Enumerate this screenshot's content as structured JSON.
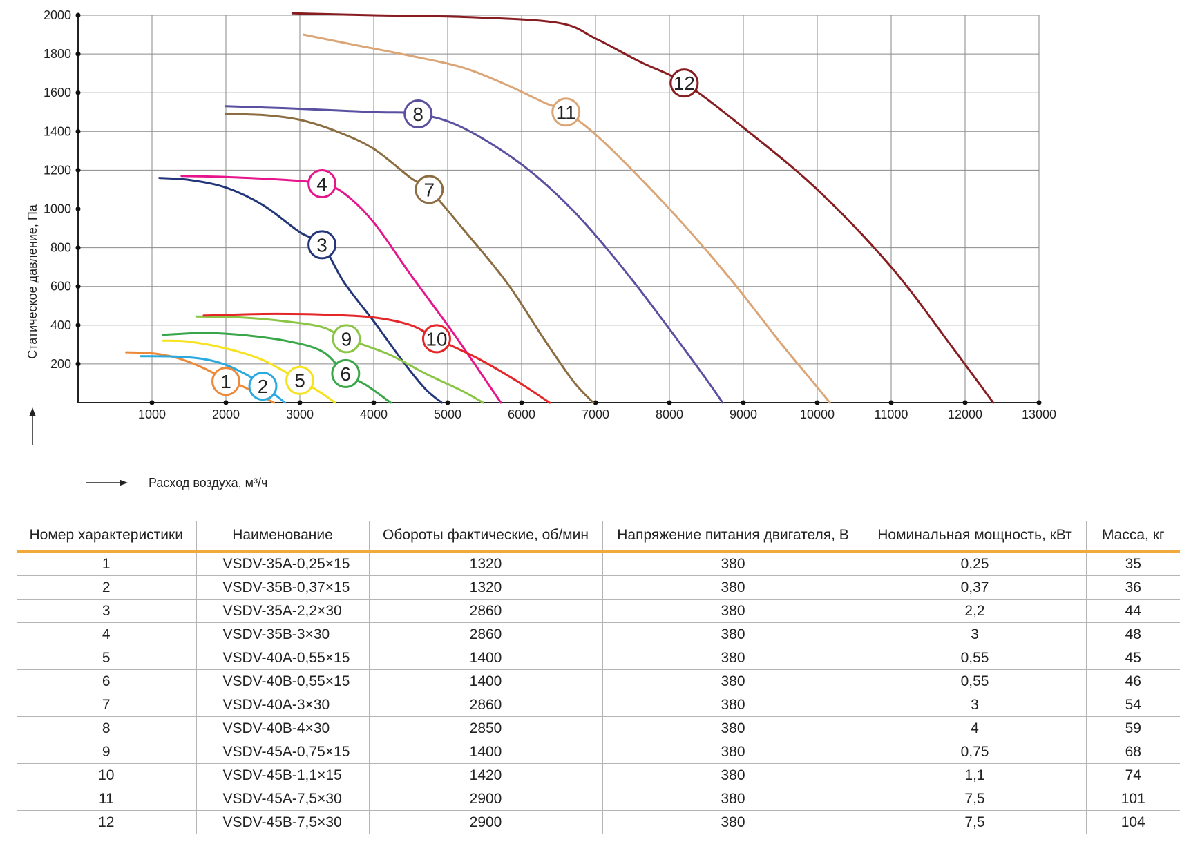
{
  "chart_data": {
    "type": "line",
    "xlabel": "Расход воздуха, м³/ч",
    "ylabel": "Статическое давление, Па",
    "xlim": [
      0,
      13000
    ],
    "ylim": [
      0,
      2000
    ],
    "x_ticks": [
      1000,
      2000,
      3000,
      4000,
      5000,
      6000,
      7000,
      8000,
      9000,
      10000,
      11000,
      12000,
      13000
    ],
    "y_ticks": [
      200,
      400,
      600,
      800,
      1000,
      1200,
      1400,
      1600,
      1800,
      2000
    ],
    "grid": true,
    "series": [
      {
        "name": "1",
        "color": "#ec8a3a",
        "label_at": [
          2000,
          110
        ],
        "points": [
          [
            650,
            260
          ],
          [
            1000,
            255
          ],
          [
            1300,
            235
          ],
          [
            1600,
            195
          ],
          [
            1850,
            150
          ],
          [
            2000,
            120
          ],
          [
            2250,
            80
          ],
          [
            2500,
            30
          ],
          [
            2650,
            0
          ]
        ]
      },
      {
        "name": "2",
        "color": "#29a9e0",
        "label_at": [
          2500,
          85
        ],
        "points": [
          [
            850,
            240
          ],
          [
            1300,
            238
          ],
          [
            1700,
            225
          ],
          [
            2000,
            195
          ],
          [
            2300,
            140
          ],
          [
            2500,
            90
          ],
          [
            2700,
            30
          ],
          [
            2800,
            0
          ]
        ]
      },
      {
        "name": "3",
        "color": "#23367a",
        "label_at": [
          3300,
          815
        ],
        "points": [
          [
            1100,
            1160
          ],
          [
            1500,
            1150
          ],
          [
            2000,
            1110
          ],
          [
            2500,
            1020
          ],
          [
            3000,
            880
          ],
          [
            3300,
            815
          ],
          [
            3600,
            620
          ],
          [
            4000,
            420
          ],
          [
            4400,
            210
          ],
          [
            4700,
            70
          ],
          [
            4920,
            0
          ]
        ]
      },
      {
        "name": "4",
        "color": "#e6158c",
        "label_at": [
          3300,
          1130
        ],
        "points": [
          [
            1400,
            1170
          ],
          [
            2000,
            1165
          ],
          [
            2800,
            1150
          ],
          [
            3300,
            1130
          ],
          [
            3600,
            1080
          ],
          [
            4000,
            930
          ],
          [
            4500,
            660
          ],
          [
            5000,
            400
          ],
          [
            5400,
            180
          ],
          [
            5720,
            0
          ]
        ]
      },
      {
        "name": "5",
        "color": "#f7e21f",
        "label_at": [
          3000,
          115
        ],
        "points": [
          [
            1150,
            320
          ],
          [
            1500,
            315
          ],
          [
            2000,
            280
          ],
          [
            2500,
            220
          ],
          [
            3000,
            115
          ],
          [
            3250,
            60
          ],
          [
            3480,
            0
          ]
        ]
      },
      {
        "name": "6",
        "color": "#3aa64a",
        "label_at": [
          3620,
          150
        ],
        "points": [
          [
            1150,
            350
          ],
          [
            1700,
            360
          ],
          [
            2200,
            350
          ],
          [
            2800,
            320
          ],
          [
            3300,
            265
          ],
          [
            3620,
            150
          ],
          [
            3900,
            90
          ],
          [
            4230,
            0
          ]
        ]
      },
      {
        "name": "7",
        "color": "#8c6d42",
        "label_at": [
          4750,
          1100
        ],
        "points": [
          [
            2000,
            1490
          ],
          [
            2500,
            1485
          ],
          [
            3000,
            1460
          ],
          [
            3500,
            1400
          ],
          [
            4000,
            1310
          ],
          [
            4500,
            1160
          ],
          [
            4750,
            1100
          ],
          [
            5200,
            900
          ],
          [
            5800,
            620
          ],
          [
            6300,
            330
          ],
          [
            6700,
            110
          ],
          [
            6970,
            0
          ]
        ]
      },
      {
        "name": "8",
        "color": "#5a50a0",
        "label_at": [
          4600,
          1490
        ],
        "points": [
          [
            2000,
            1530
          ],
          [
            2800,
            1520
          ],
          [
            4000,
            1500
          ],
          [
            4600,
            1490
          ],
          [
            5200,
            1420
          ],
          [
            6000,
            1230
          ],
          [
            6700,
            990
          ],
          [
            7400,
            680
          ],
          [
            8000,
            380
          ],
          [
            8500,
            120
          ],
          [
            8720,
            0
          ]
        ]
      },
      {
        "name": "9",
        "color": "#8bc545",
        "label_at": [
          3630,
          330
        ],
        "points": [
          [
            1600,
            445
          ],
          [
            2200,
            440
          ],
          [
            2800,
            420
          ],
          [
            3300,
            390
          ],
          [
            3630,
            330
          ],
          [
            4200,
            250
          ],
          [
            4700,
            150
          ],
          [
            5200,
            60
          ],
          [
            5480,
            0
          ]
        ]
      },
      {
        "name": "10",
        "color": "#e52629",
        "label_at": [
          4850,
          330
        ],
        "points": [
          [
            1700,
            450
          ],
          [
            2500,
            458
          ],
          [
            3300,
            455
          ],
          [
            4000,
            440
          ],
          [
            4500,
            400
          ],
          [
            4850,
            330
          ],
          [
            5400,
            230
          ],
          [
            5900,
            120
          ],
          [
            6380,
            0
          ]
        ]
      },
      {
        "name": "11",
        "color": "#dba677",
        "label_at": [
          6600,
          1500
        ],
        "points": [
          [
            3050,
            1900
          ],
          [
            3700,
            1850
          ],
          [
            4500,
            1790
          ],
          [
            5200,
            1730
          ],
          [
            5800,
            1640
          ],
          [
            6300,
            1550
          ],
          [
            6600,
            1500
          ],
          [
            7100,
            1350
          ],
          [
            8000,
            1000
          ],
          [
            8800,
            650
          ],
          [
            9500,
            310
          ],
          [
            10000,
            80
          ],
          [
            10170,
            0
          ]
        ]
      },
      {
        "name": "12",
        "color": "#871d21",
        "label_at": [
          8200,
          1650
        ],
        "points": [
          [
            2900,
            2010
          ],
          [
            4000,
            2000
          ],
          [
            5300,
            1990
          ],
          [
            6500,
            1960
          ],
          [
            7000,
            1880
          ],
          [
            7600,
            1760
          ],
          [
            8200,
            1650
          ],
          [
            9000,
            1420
          ],
          [
            10000,
            1100
          ],
          [
            11000,
            700
          ],
          [
            11800,
            300
          ],
          [
            12380,
            0
          ]
        ]
      }
    ]
  },
  "table": {
    "headers": [
      "Номер характеристики",
      "Наименование",
      "Обороты фактические, об/мин",
      "Напряжение питания двигателя, В",
      "Номинальная мощность, кВт",
      "Масса, кг"
    ],
    "rows": [
      [
        "1",
        "VSDV-35A-0,25×15",
        "1320",
        "380",
        "0,25",
        "35"
      ],
      [
        "2",
        "VSDV-35B-0,37×15",
        "1320",
        "380",
        "0,37",
        "36"
      ],
      [
        "3",
        "VSDV-35A-2,2×30",
        "2860",
        "380",
        "2,2",
        "44"
      ],
      [
        "4",
        "VSDV-35B-3×30",
        "2860",
        "380",
        "3",
        "48"
      ],
      [
        "5",
        "VSDV-40A-0,55×15",
        "1400",
        "380",
        "0,55",
        "45"
      ],
      [
        "6",
        "VSDV-40B-0,55×15",
        "1400",
        "380",
        "0,55",
        "46"
      ],
      [
        "7",
        "VSDV-40A-3×30",
        "2860",
        "380",
        "3",
        "54"
      ],
      [
        "8",
        "VSDV-40B-4×30",
        "2850",
        "380",
        "4",
        "59"
      ],
      [
        "9",
        "VSDV-45A-0,75×15",
        "1400",
        "380",
        "0,75",
        "68"
      ],
      [
        "10",
        "VSDV-45B-1,1×15",
        "1420",
        "380",
        "1,1",
        "74"
      ],
      [
        "11",
        "VSDV-45A-7,5×30",
        "2900",
        "380",
        "7,5",
        "101"
      ],
      [
        "12",
        "VSDV-45B-7,5×30",
        "2900",
        "380",
        "7,5",
        "104"
      ]
    ]
  }
}
